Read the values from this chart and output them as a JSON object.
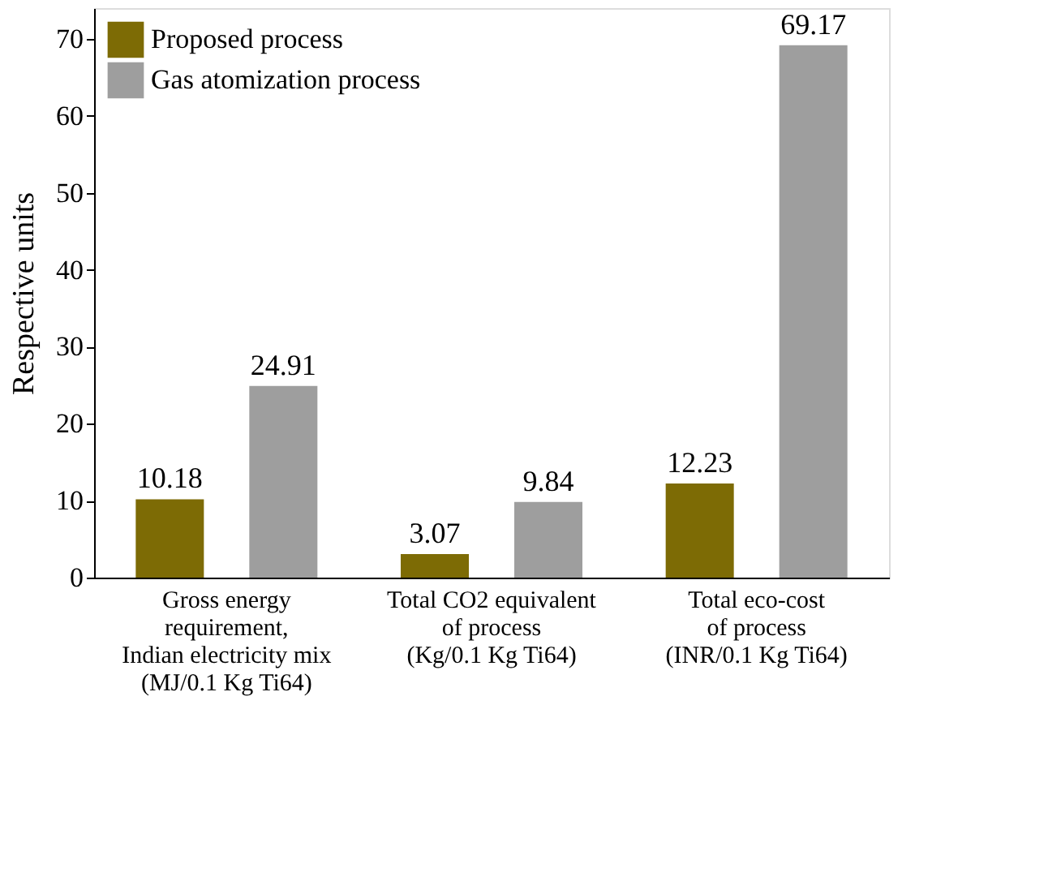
{
  "chart_data": {
    "type": "bar",
    "ylabel": "Respective units",
    "categories": [
      "Gross energy\nrequirement,\nIndian electricity mix\n(MJ/0.1 Kg Ti64)",
      "Total CO2 equivalent\nof process\n(Kg/0.1 Kg Ti64)",
      "Total eco-cost\nof process\n(INR/0.1 Kg Ti64)"
    ],
    "series": [
      {
        "name": "Proposed process",
        "color": "#7d6b05",
        "values": [
          10.18,
          3.07,
          12.23
        ]
      },
      {
        "name": "Gas atomization process",
        "color": "#9e9e9e",
        "values": [
          24.91,
          9.84,
          69.17
        ]
      }
    ],
    "ylim": [
      0,
      74
    ],
    "yticks": [
      0,
      10,
      20,
      30,
      40,
      50,
      60,
      70
    ],
    "data_labels": true,
    "legend": "top left",
    "grid": false
  }
}
